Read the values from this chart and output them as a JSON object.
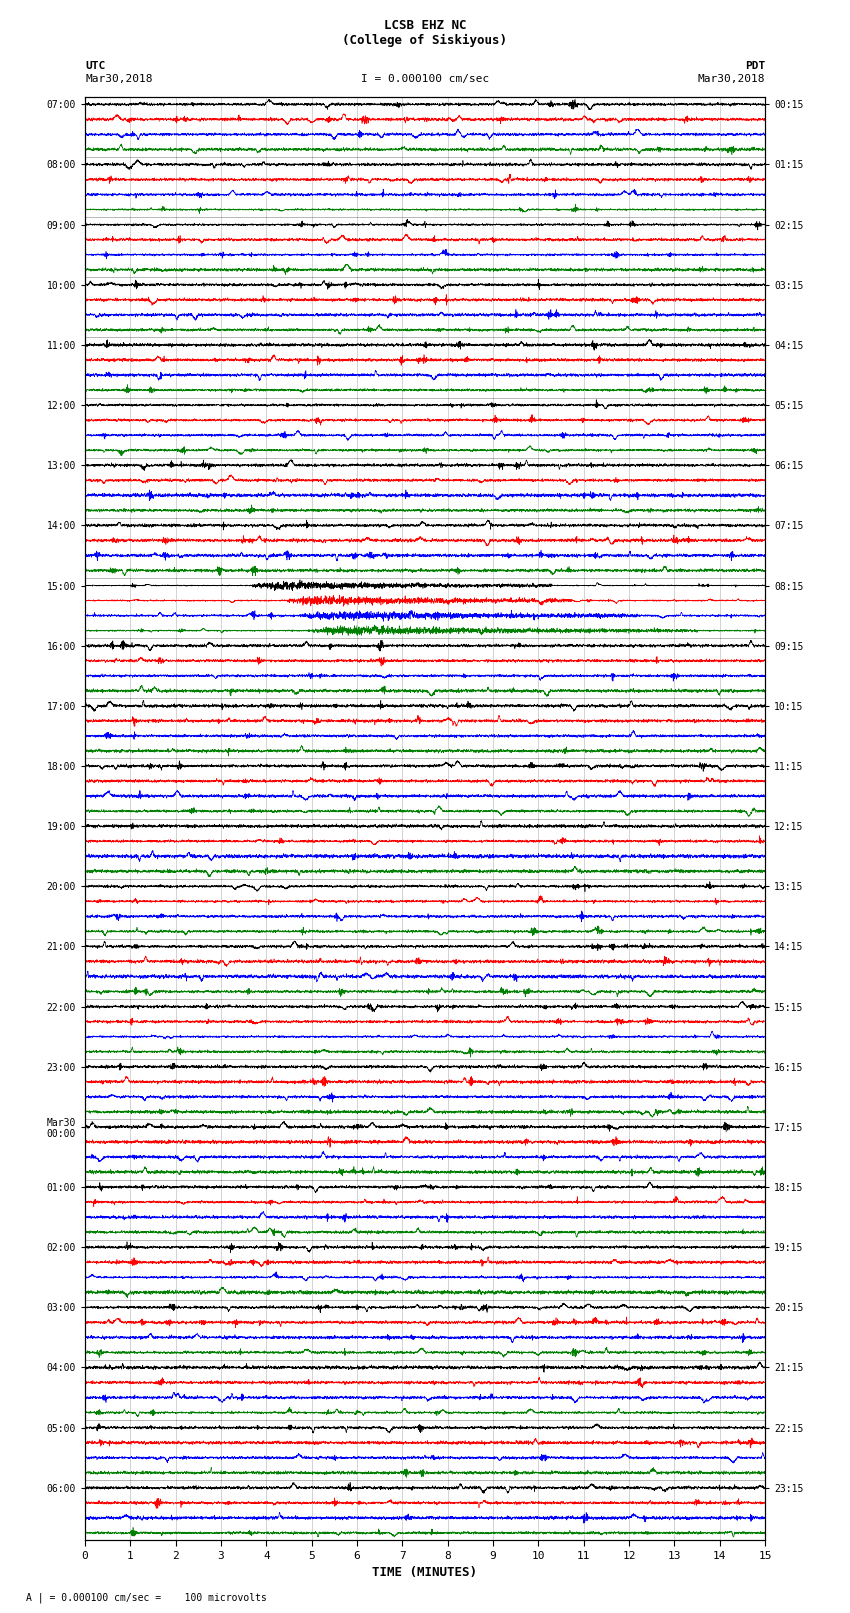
{
  "title_line1": "LCSB EHZ NC",
  "title_line2": "(College of Siskiyous)",
  "scale_label": "I = 0.000100 cm/sec",
  "left_header": "UTC",
  "right_header": "PDT",
  "left_date": "Mar30,2018",
  "right_date": "Mar30,2018",
  "footer": "A | = 0.000100 cm/sec =    100 microvolts",
  "xlabel": "TIME (MINUTES)",
  "x_ticks": [
    0,
    1,
    2,
    3,
    4,
    5,
    6,
    7,
    8,
    9,
    10,
    11,
    12,
    13,
    14,
    15
  ],
  "utc_labels": [
    "07:00",
    "08:00",
    "09:00",
    "10:00",
    "11:00",
    "12:00",
    "13:00",
    "14:00",
    "15:00",
    "16:00",
    "17:00",
    "18:00",
    "19:00",
    "20:00",
    "21:00",
    "22:00",
    "23:00",
    "Mar30\n00:00",
    "01:00",
    "02:00",
    "03:00",
    "04:00",
    "05:00",
    "06:00"
  ],
  "pdt_labels": [
    "00:15",
    "01:15",
    "02:15",
    "03:15",
    "04:15",
    "05:15",
    "06:15",
    "07:15",
    "08:15",
    "09:15",
    "10:15",
    "11:15",
    "12:15",
    "13:15",
    "14:15",
    "15:15",
    "16:15",
    "17:15",
    "18:15",
    "19:15",
    "20:15",
    "21:15",
    "22:15",
    "23:15"
  ],
  "num_rows": 24,
  "traces_per_row": 4,
  "colors": [
    "black",
    "red",
    "blue",
    "green"
  ],
  "bg_color": "white",
  "trace_amplitude": 0.38,
  "earthquake_row": 8,
  "noise_seed": 12345
}
